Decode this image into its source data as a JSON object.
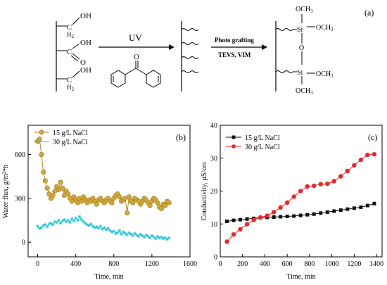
{
  "scheme": {
    "panel_label": "(a)",
    "groups": {
      "oh_top": "OH",
      "ch2_top": "C",
      "h2_top": "H",
      "h2_sub": "2",
      "cooh_c": "C",
      "cooh_oh": "OH",
      "cooh_o": "O",
      "oh_bottom": "OH",
      "ch2_bottom": "C",
      "h2_bottom": "H",
      "h2_bottom_sub": "2"
    },
    "arrow1_label": "UV",
    "benzophenone_o": "O",
    "arrow2_label": "Photo grafting",
    "arrow2_sublabel": "TEVS, VIM",
    "product": {
      "och3_top": "OCH",
      "och3_top_sub": "3",
      "si_top": "Si",
      "och3_right": "OCH",
      "och3_right_sub": "3",
      "o_bridge": "O",
      "si_bottom": "Si",
      "och3_mid": "OCH",
      "och3_mid_sub": "3",
      "och3_bottom": "OCH",
      "och3_bottom_sub": "3"
    }
  },
  "chart_data": [
    {
      "type": "line",
      "panel_label": "(b)",
      "xlabel": "Time, min",
      "ylabel": "Water flux, g/m",
      "ylabel_sup": "2",
      "ylabel_tail": "*h",
      "xlim": [
        -100,
        1600
      ],
      "ylim": [
        -100,
        800
      ],
      "xticks": [
        0,
        400,
        800,
        1200,
        1600
      ],
      "yticks": [
        0,
        300,
        600
      ],
      "legend_position": "top-left",
      "series": [
        {
          "name": "15 g/L NaCl",
          "color": "#d4a73a",
          "marker": "circle",
          "x": [
            0,
            20,
            40,
            60,
            80,
            100,
            120,
            140,
            160,
            180,
            200,
            220,
            240,
            260,
            280,
            300,
            320,
            340,
            360,
            380,
            400,
            420,
            440,
            460,
            480,
            500,
            520,
            540,
            560,
            580,
            600,
            620,
            640,
            660,
            680,
            700,
            720,
            740,
            760,
            780,
            800,
            820,
            840,
            860,
            880,
            900,
            920,
            940,
            960,
            980,
            1000,
            1020,
            1040,
            1060,
            1080,
            1100,
            1120,
            1140,
            1160,
            1180,
            1200,
            1220,
            1240,
            1260,
            1280,
            1300,
            1320,
            1340,
            1360,
            1380
          ],
          "y": [
            690,
            705,
            600,
            480,
            420,
            370,
            330,
            300,
            320,
            350,
            380,
            360,
            410,
            370,
            320,
            350,
            330,
            300,
            280,
            310,
            290,
            270,
            300,
            280,
            310,
            290,
            270,
            290,
            280,
            300,
            280,
            260,
            290,
            300,
            280,
            270,
            290,
            300,
            280,
            270,
            300,
            320,
            330,
            310,
            280,
            290,
            300,
            200,
            310,
            280,
            270,
            300,
            290,
            280,
            260,
            280,
            300,
            290,
            270,
            250,
            280,
            300,
            290,
            270,
            240,
            230,
            260,
            250,
            280,
            270
          ]
        },
        {
          "name": "30 g/L NaCl",
          "color": "#27c4d6",
          "marker": "star",
          "x": [
            0,
            20,
            40,
            60,
            80,
            100,
            120,
            140,
            160,
            180,
            200,
            220,
            240,
            260,
            280,
            300,
            320,
            340,
            360,
            380,
            400,
            420,
            440,
            460,
            480,
            500,
            520,
            540,
            560,
            580,
            600,
            620,
            640,
            660,
            680,
            700,
            720,
            740,
            760,
            780,
            800,
            820,
            840,
            860,
            880,
            900,
            920,
            940,
            960,
            980,
            1000,
            1020,
            1040,
            1060,
            1080,
            1100,
            1120,
            1140,
            1160,
            1180,
            1200,
            1220,
            1240,
            1260,
            1280,
            1300,
            1320,
            1340,
            1360,
            1380
          ],
          "y": [
            110,
            95,
            100,
            115,
            120,
            105,
            125,
            130,
            120,
            140,
            135,
            150,
            130,
            145,
            155,
            140,
            150,
            135,
            160,
            145,
            165,
            150,
            175,
            155,
            140,
            130,
            120,
            115,
            125,
            110,
            100,
            105,
            95,
            110,
            90,
            100,
            85,
            95,
            80,
            70,
            75,
            60,
            65,
            80,
            55,
            70,
            60,
            50,
            65,
            55,
            45,
            60,
            50,
            40,
            55,
            45,
            35,
            50,
            40,
            30,
            45,
            35,
            25,
            40,
            30,
            35,
            25,
            30,
            20,
            30
          ]
        }
      ]
    },
    {
      "type": "line",
      "panel_label": "(c)",
      "xlabel": "Time, min",
      "ylabel": "Conductivity, µS/cm",
      "xlim": [
        0,
        1450
      ],
      "ylim": [
        0,
        40
      ],
      "xticks": [
        0,
        200,
        400,
        600,
        800,
        1000,
        1200,
        1400
      ],
      "yticks": [
        0,
        10,
        20,
        30,
        40
      ],
      "legend_position": "top-left",
      "series": [
        {
          "name": "15 g/L NaCl",
          "color": "#111111",
          "marker": "square",
          "x": [
            60,
            120,
            180,
            240,
            300,
            360,
            420,
            480,
            540,
            600,
            660,
            720,
            780,
            840,
            900,
            960,
            1020,
            1080,
            1140,
            1200,
            1260,
            1320,
            1380
          ],
          "y": [
            10.8,
            11.1,
            11.3,
            11.5,
            11.7,
            11.9,
            12.0,
            12.1,
            12.2,
            12.3,
            12.4,
            12.6,
            12.8,
            13.0,
            13.3,
            13.6,
            13.9,
            14.2,
            14.5,
            14.8,
            15.1,
            15.6,
            16.2
          ]
        },
        {
          "name": "30 g/L NaCl",
          "color": "#e8262a",
          "marker": "circle",
          "x": [
            60,
            120,
            180,
            240,
            300,
            360,
            420,
            480,
            540,
            600,
            660,
            720,
            780,
            840,
            900,
            960,
            1020,
            1080,
            1140,
            1200,
            1260,
            1320,
            1380
          ],
          "y": [
            4.6,
            6.8,
            8.4,
            9.9,
            11.2,
            12.0,
            12.5,
            13.6,
            15.0,
            16.5,
            18.3,
            20.0,
            21.4,
            21.6,
            22.1,
            22.2,
            23.0,
            24.5,
            26.1,
            27.8,
            29.5,
            31.0,
            31.2
          ]
        }
      ]
    }
  ]
}
